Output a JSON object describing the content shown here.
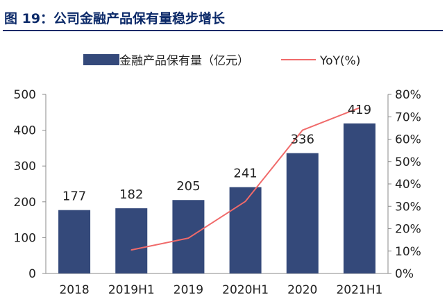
{
  "figure": {
    "title": "图 19：公司金融产品保有量稳步增长"
  },
  "chart_data": {
    "type": "bar",
    "categories": [
      "2018",
      "2019H1",
      "2019",
      "2020H1",
      "2020",
      "2021H1"
    ],
    "series": [
      {
        "name": "金融产品保有量（亿元）",
        "type": "bar",
        "axis": "left",
        "color": "#34497a",
        "values": [
          177,
          182,
          205,
          241,
          336,
          419
        ]
      },
      {
        "name": "YoY(%)",
        "type": "line",
        "axis": "right",
        "color": "#f06a6a",
        "values": [
          null,
          10.5,
          15.8,
          32.2,
          64,
          74
        ]
      }
    ],
    "y_left": {
      "min": 0,
      "max": 500,
      "step": 100,
      "ticks": [
        "0",
        "100",
        "200",
        "300",
        "400",
        "500"
      ]
    },
    "y_right": {
      "min": 0,
      "max": 80,
      "step": 10,
      "ticks": [
        "0%",
        "10%",
        "20%",
        "30%",
        "40%",
        "50%",
        "60%",
        "70%",
        "80%"
      ]
    },
    "data_labels": [
      "177",
      "182",
      "205",
      "241",
      "336",
      "419"
    ],
    "legend_position": "top-center",
    "grid": false
  }
}
